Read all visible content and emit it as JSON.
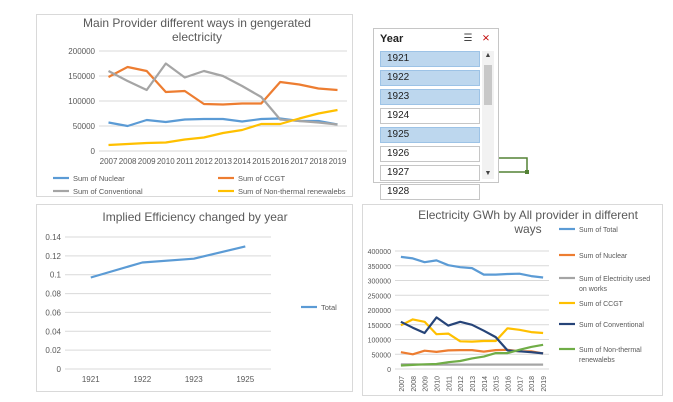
{
  "chart_data": [
    {
      "type": "line",
      "title": "Main Provider different ways in gengerated electricity",
      "title_lines": [
        "Main Provider different ways in gengerated",
        "electricity"
      ],
      "x": [
        "2007",
        "2008",
        "2009",
        "2010",
        "2011",
        "2012",
        "2013",
        "2014",
        "2015",
        "2016",
        "2017",
        "2018",
        "2019"
      ],
      "ylim": [
        0,
        200000
      ],
      "yticks": [
        "0",
        "50000",
        "100000",
        "150000",
        "200000"
      ],
      "legend_position": "bottom",
      "series": [
        {
          "name": "Sum of Nuclear",
          "color": "#5b9bd5",
          "values": [
            57000,
            50000,
            62000,
            58000,
            63000,
            64000,
            64000,
            59000,
            64000,
            65000,
            60000,
            60000,
            53000
          ]
        },
        {
          "name": "Sum of CCGT",
          "color": "#ed7d31",
          "values": [
            148000,
            168000,
            160000,
            118000,
            120000,
            94000,
            93000,
            95000,
            95000,
            138000,
            133000,
            125000,
            122000
          ]
        },
        {
          "name": "Sum of Conventional",
          "color": "#a5a5a5",
          "values": [
            160000,
            140000,
            122000,
            175000,
            147000,
            160000,
            150000,
            130000,
            108000,
            63000,
            60000,
            57000,
            53000
          ]
        },
        {
          "name": "Sum of Non-thermal renewalebs",
          "color": "#ffc000",
          "values": [
            12000,
            14000,
            16000,
            17000,
            23000,
            27000,
            36000,
            42000,
            54000,
            54000,
            65000,
            75000,
            82000
          ]
        }
      ]
    },
    {
      "type": "line",
      "title": "Implied Efficiency changed by year",
      "x": [
        "1921",
        "1922",
        "1923",
        "1925"
      ],
      "ylim": [
        0,
        0.14
      ],
      "yticks": [
        "0",
        "0.02",
        "0.04",
        "0.06",
        "0.08",
        "0.1",
        "0.12",
        "0.14"
      ],
      "legend_position": "right",
      "series": [
        {
          "name": "Total",
          "color": "#5b9bd5",
          "values": [
            0.097,
            0.113,
            0.117,
            0.13
          ]
        }
      ]
    },
    {
      "type": "line",
      "title": "Electricity GWh by All provider in different ways",
      "title_lines": [
        "Electricity GWh by All provider in different",
        "ways"
      ],
      "x": [
        "2007",
        "2008",
        "2009",
        "2010",
        "2011",
        "2012",
        "2013",
        "2014",
        "2015",
        "2016",
        "2017",
        "2018",
        "2019"
      ],
      "ylim": [
        0,
        400000
      ],
      "yticks": [
        "0",
        "50000",
        "100000",
        "150000",
        "200000",
        "250000",
        "300000",
        "350000",
        "400000"
      ],
      "legend_position": "right",
      "series": [
        {
          "name": "Sum of Total",
          "legend_lines": [
            "Sum of Total"
          ],
          "color": "#5b9bd5",
          "values": [
            380000,
            375000,
            362000,
            368000,
            352000,
            345000,
            342000,
            320000,
            320000,
            322000,
            323000,
            315000,
            310000
          ]
        },
        {
          "name": "Sum of Nuclear",
          "legend_lines": [
            "Sum of Nuclear"
          ],
          "color": "#ed7d31",
          "values": [
            57000,
            50000,
            62000,
            58000,
            63000,
            64000,
            64000,
            59000,
            64000,
            65000,
            60000,
            60000,
            53000
          ]
        },
        {
          "name": "Sum of Electricity used on works",
          "legend_lines": [
            "Sum of Electricity used",
            "on works"
          ],
          "color": "#a5a5a5",
          "values": [
            16000,
            16000,
            15000,
            15000,
            15000,
            15000,
            15000,
            15000,
            15000,
            15000,
            15000,
            15000,
            15000
          ]
        },
        {
          "name": "Sum of CCGT",
          "legend_lines": [
            "Sum of CCGT"
          ],
          "color": "#ffc000",
          "values": [
            148000,
            168000,
            160000,
            118000,
            120000,
            94000,
            93000,
            95000,
            95000,
            138000,
            133000,
            125000,
            122000
          ]
        },
        {
          "name": "Sum of Conventional",
          "legend_lines": [
            "Sum of Conventional"
          ],
          "color": "#264478",
          "values": [
            160000,
            140000,
            122000,
            175000,
            147000,
            160000,
            150000,
            130000,
            108000,
            63000,
            60000,
            57000,
            53000
          ]
        },
        {
          "name": "Sum of Non-thermal renewalebs",
          "legend_lines": [
            "Sum of Non-thermal",
            "renewalebs"
          ],
          "color": "#70ad47",
          "values": [
            12000,
            14000,
            16000,
            17000,
            23000,
            27000,
            36000,
            42000,
            54000,
            54000,
            65000,
            75000,
            82000
          ]
        }
      ]
    }
  ],
  "slicer": {
    "title": "Year",
    "filter_icon": "multi-select-icon",
    "clear_icon": "clear-filter-icon",
    "items": [
      {
        "label": "1921",
        "selected": true
      },
      {
        "label": "1922",
        "selected": true
      },
      {
        "label": "1923",
        "selected": true
      },
      {
        "label": "1924",
        "selected": false
      },
      {
        "label": "1925",
        "selected": true
      },
      {
        "label": "1926",
        "selected": false
      },
      {
        "label": "1927",
        "selected": false
      },
      {
        "label": "1928",
        "selected": false
      }
    ]
  },
  "connector_color": "#548235"
}
